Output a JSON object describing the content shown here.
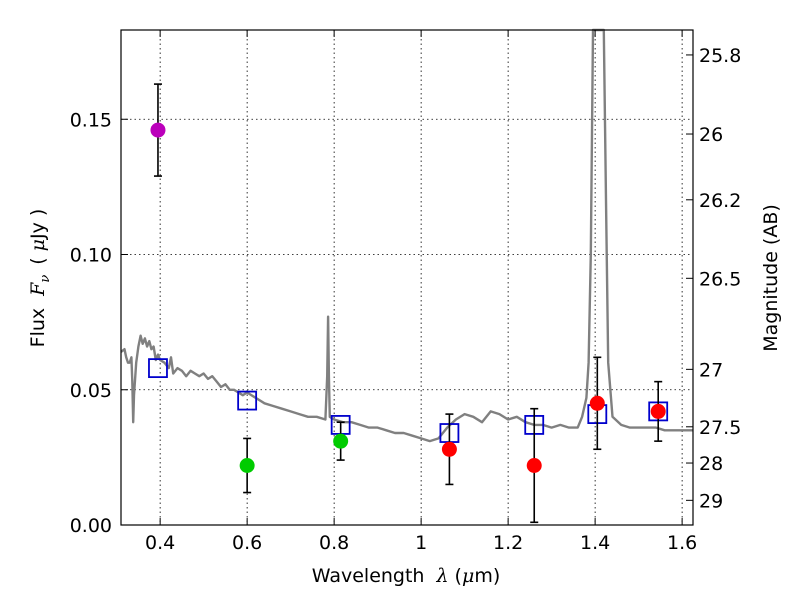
{
  "chart_data": {
    "type": "scatter",
    "xlabel_text": "Wavelength",
    "xlabel_symbol": "λ",
    "xlabel_unit_open": "(",
    "xlabel_unit_mu": "μ",
    "xlabel_unit_rest": "m)",
    "ylabel_text": "Flux",
    "ylabel_symbol": "F",
    "ylabel_subscript": "ν",
    "ylabel_unit_open": "(",
    "ylabel_unit_mu": "μ",
    "ylabel_unit_rest": "Jy )",
    "y2label": "Magnitude (AB)",
    "xlim": [
      0.31,
      1.625
    ],
    "ylim": [
      0.0,
      0.183
    ],
    "grid": true,
    "x_ticks": [
      0.4,
      0.6,
      0.8,
      1.0,
      1.2,
      1.4,
      1.6
    ],
    "x_tick_labels": [
      "0.4",
      "0.6",
      "0.8",
      "1",
      "1.2",
      "1.4",
      "1.6"
    ],
    "y_ticks": [
      0.0,
      0.05,
      0.1,
      0.15
    ],
    "y_tick_labels": [
      "0.00",
      "0.05",
      "0.10",
      "0.15"
    ],
    "mag_ticks": [
      25.8,
      26,
      26.2,
      26.5,
      27,
      27.5,
      28,
      29
    ],
    "mag_tick_labels": [
      "25.8",
      "26",
      "26.2",
      "26.5",
      "27",
      "27.5",
      "28",
      "29"
    ],
    "colors": {
      "magenta": "#bb00bb",
      "green": "#00cc00",
      "red": "#ff0000",
      "model_box": "#0000cc",
      "sed": "#808080",
      "errorbar": "#000000"
    },
    "series": [
      {
        "name": "observed",
        "points": [
          {
            "x": 0.395,
            "y": 0.146,
            "err": 0.017,
            "color": "magenta"
          },
          {
            "x": 0.6,
            "y": 0.022,
            "err": 0.01,
            "color": "green"
          },
          {
            "x": 0.815,
            "y": 0.031,
            "err": 0.007,
            "color": "green"
          },
          {
            "x": 1.065,
            "y": 0.028,
            "err": 0.013,
            "color": "red"
          },
          {
            "x": 1.26,
            "y": 0.022,
            "err": 0.021,
            "color": "red"
          },
          {
            "x": 1.405,
            "y": 0.045,
            "err": 0.017,
            "color": "red"
          },
          {
            "x": 1.545,
            "y": 0.042,
            "err": 0.011,
            "color": "red"
          }
        ]
      },
      {
        "name": "model_photometry",
        "points": [
          {
            "x": 0.395,
            "y": 0.058
          },
          {
            "x": 0.6,
            "y": 0.046
          },
          {
            "x": 0.815,
            "y": 0.037
          },
          {
            "x": 1.065,
            "y": 0.034
          },
          {
            "x": 1.26,
            "y": 0.037
          },
          {
            "x": 1.405,
            "y": 0.041
          },
          {
            "x": 1.545,
            "y": 0.042
          }
        ]
      },
      {
        "name": "sed_model",
        "points": [
          [
            0.31,
            0.064
          ],
          [
            0.318,
            0.065
          ],
          [
            0.322,
            0.062
          ],
          [
            0.326,
            0.06
          ],
          [
            0.33,
            0.06
          ],
          [
            0.334,
            0.062
          ],
          [
            0.336,
            0.053
          ],
          [
            0.338,
            0.038
          ],
          [
            0.34,
            0.048
          ],
          [
            0.345,
            0.06
          ],
          [
            0.35,
            0.066
          ],
          [
            0.355,
            0.07
          ],
          [
            0.36,
            0.067
          ],
          [
            0.365,
            0.069
          ],
          [
            0.37,
            0.066
          ],
          [
            0.375,
            0.068
          ],
          [
            0.38,
            0.065
          ],
          [
            0.385,
            0.066
          ],
          [
            0.39,
            0.061
          ],
          [
            0.395,
            0.063
          ],
          [
            0.4,
            0.061
          ],
          [
            0.41,
            0.06
          ],
          [
            0.42,
            0.058
          ],
          [
            0.425,
            0.062
          ],
          [
            0.43,
            0.056
          ],
          [
            0.44,
            0.058
          ],
          [
            0.45,
            0.057
          ],
          [
            0.46,
            0.055
          ],
          [
            0.47,
            0.057
          ],
          [
            0.48,
            0.056
          ],
          [
            0.49,
            0.055
          ],
          [
            0.5,
            0.056
          ],
          [
            0.51,
            0.054
          ],
          [
            0.52,
            0.055
          ],
          [
            0.53,
            0.053
          ],
          [
            0.54,
            0.051
          ],
          [
            0.55,
            0.052
          ],
          [
            0.56,
            0.05
          ],
          [
            0.57,
            0.05
          ],
          [
            0.58,
            0.049
          ],
          [
            0.59,
            0.048
          ],
          [
            0.6,
            0.049
          ],
          [
            0.62,
            0.047
          ],
          [
            0.64,
            0.045
          ],
          [
            0.66,
            0.044
          ],
          [
            0.68,
            0.043
          ],
          [
            0.7,
            0.042
          ],
          [
            0.72,
            0.041
          ],
          [
            0.74,
            0.04
          ],
          [
            0.76,
            0.04
          ],
          [
            0.78,
            0.039
          ],
          [
            0.784,
            0.055
          ],
          [
            0.786,
            0.077
          ],
          [
            0.788,
            0.055
          ],
          [
            0.79,
            0.04
          ],
          [
            0.8,
            0.039
          ],
          [
            0.82,
            0.038
          ],
          [
            0.84,
            0.038
          ],
          [
            0.86,
            0.037
          ],
          [
            0.88,
            0.036
          ],
          [
            0.9,
            0.036
          ],
          [
            0.92,
            0.035
          ],
          [
            0.94,
            0.034
          ],
          [
            0.96,
            0.034
          ],
          [
            0.98,
            0.033
          ],
          [
            1.0,
            0.032
          ],
          [
            1.02,
            0.031
          ],
          [
            1.04,
            0.032
          ],
          [
            1.06,
            0.036
          ],
          [
            1.08,
            0.039
          ],
          [
            1.1,
            0.041
          ],
          [
            1.12,
            0.04
          ],
          [
            1.14,
            0.038
          ],
          [
            1.16,
            0.042
          ],
          [
            1.18,
            0.041
          ],
          [
            1.2,
            0.039
          ],
          [
            1.22,
            0.04
          ],
          [
            1.24,
            0.038
          ],
          [
            1.26,
            0.037
          ],
          [
            1.28,
            0.037
          ],
          [
            1.3,
            0.036
          ],
          [
            1.32,
            0.037
          ],
          [
            1.34,
            0.036
          ],
          [
            1.36,
            0.036
          ],
          [
            1.37,
            0.04
          ],
          [
            1.38,
            0.047
          ],
          [
            1.385,
            0.06
          ],
          [
            1.39,
            0.1
          ],
          [
            1.395,
            0.183
          ],
          [
            1.42,
            0.183
          ],
          [
            1.425,
            0.12
          ],
          [
            1.43,
            0.06
          ],
          [
            1.44,
            0.04
          ],
          [
            1.46,
            0.037
          ],
          [
            1.48,
            0.036
          ],
          [
            1.5,
            0.036
          ],
          [
            1.52,
            0.036
          ],
          [
            1.54,
            0.036
          ],
          [
            1.56,
            0.035
          ],
          [
            1.58,
            0.035
          ],
          [
            1.6,
            0.035
          ],
          [
            1.625,
            0.035
          ]
        ]
      }
    ]
  }
}
